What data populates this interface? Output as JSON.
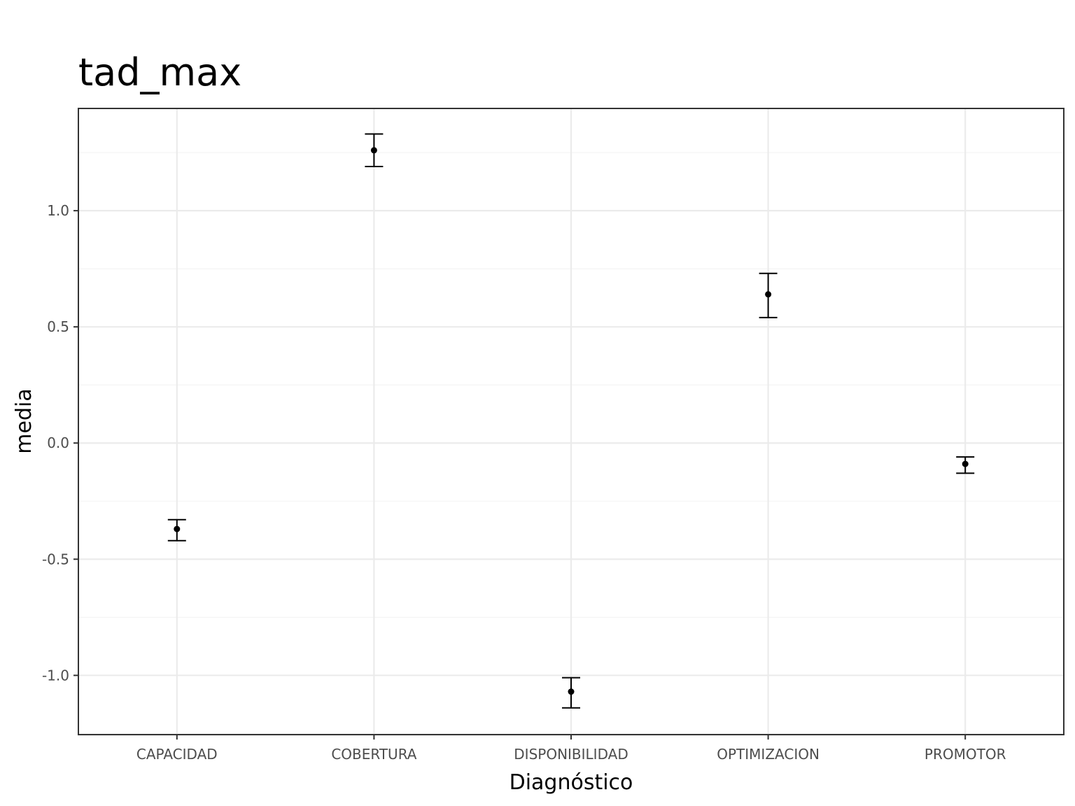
{
  "chart_data": {
    "type": "scatter",
    "title": "tad_max",
    "xlabel": "Diagnóstico",
    "ylabel": "media",
    "categories": [
      "CAPACIDAD",
      "COBERTURA",
      "DISPONIBILIDAD",
      "OPTIMIZACION",
      "PROMOTOR"
    ],
    "series": [
      {
        "values": [
          -0.37,
          1.26,
          -1.07,
          0.64,
          -0.09
        ],
        "lower": [
          -0.42,
          1.19,
          -1.14,
          0.54,
          -0.13
        ],
        "upper": [
          -0.33,
          1.33,
          -1.01,
          0.73,
          -0.06
        ]
      }
    ],
    "ylim": [
      -1.255,
      1.44
    ],
    "yticks": [
      -1.0,
      -0.5,
      0.0,
      0.5,
      1.0
    ],
    "ytick_labels": [
      "-1.0",
      "-0.5",
      "0.0",
      "0.5",
      "1.0"
    ],
    "grid": true,
    "legend": "none",
    "colors": {
      "point": "#000000",
      "grid": "#ebebeb",
      "border": "#333333",
      "tick_text": "#4d4d4d"
    }
  }
}
